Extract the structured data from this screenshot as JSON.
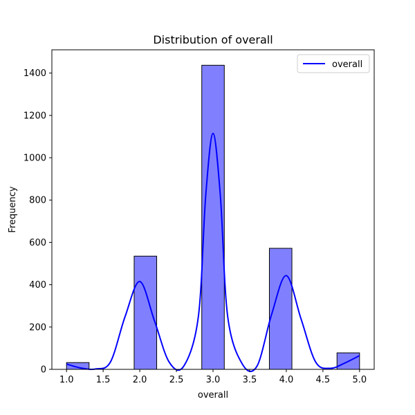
{
  "chart_data": {
    "type": "bar",
    "title": "Distribution of overall",
    "xlabel": "overall",
    "ylabel": "Frequency",
    "xlim": [
      0.8,
      5.2
    ],
    "ylim": [
      0,
      1510
    ],
    "xticks": [
      "1.0",
      "1.5",
      "2.0",
      "2.5",
      "3.0",
      "3.5",
      "4.0",
      "4.5",
      "5.0"
    ],
    "yticks": [
      "0",
      "200",
      "400",
      "600",
      "800",
      "1000",
      "1200",
      "1400"
    ],
    "bins": [
      {
        "x_start": 1.0,
        "x_end": 1.3077,
        "value": 32
      },
      {
        "x_start": 1.3077,
        "x_end": 1.6154,
        "value": 0
      },
      {
        "x_start": 1.6154,
        "x_end": 1.9231,
        "value": 0
      },
      {
        "x_start": 1.9231,
        "x_end": 2.2308,
        "value": 535
      },
      {
        "x_start": 2.2308,
        "x_end": 2.5385,
        "value": 0
      },
      {
        "x_start": 2.5385,
        "x_end": 2.8462,
        "value": 0
      },
      {
        "x_start": 2.8462,
        "x_end": 3.1538,
        "value": 1437
      },
      {
        "x_start": 3.1538,
        "x_end": 3.4615,
        "value": 0
      },
      {
        "x_start": 3.4615,
        "x_end": 3.7692,
        "value": 0
      },
      {
        "x_start": 3.7692,
        "x_end": 4.0769,
        "value": 572
      },
      {
        "x_start": 4.0769,
        "x_end": 4.3846,
        "value": 0
      },
      {
        "x_start": 4.3846,
        "x_end": 4.6923,
        "value": 0
      },
      {
        "x_start": 4.6923,
        "x_end": 5.0,
        "value": 78
      }
    ],
    "series": [
      {
        "name": "overall",
        "type": "line",
        "x": [
          1.0,
          1.2,
          1.4,
          1.6,
          1.8,
          2.0,
          2.2,
          2.4,
          2.6,
          2.8,
          2.9,
          3.0,
          3.1,
          3.2,
          3.4,
          3.6,
          3.8,
          4.0,
          4.2,
          4.4,
          4.6,
          4.8,
          5.0
        ],
        "y": [
          25,
          6,
          2,
          35,
          250,
          415,
          230,
          35,
          15,
          250,
          820,
          1115,
          820,
          250,
          25,
          15,
          260,
          443,
          240,
          35,
          5,
          30,
          65
        ]
      }
    ],
    "colors": {
      "bar_fill": "#8080ff",
      "bar_edge": "#000000",
      "kde_line": "#0000ff",
      "axis": "#000000"
    },
    "grid": false,
    "legend": "top-right"
  }
}
